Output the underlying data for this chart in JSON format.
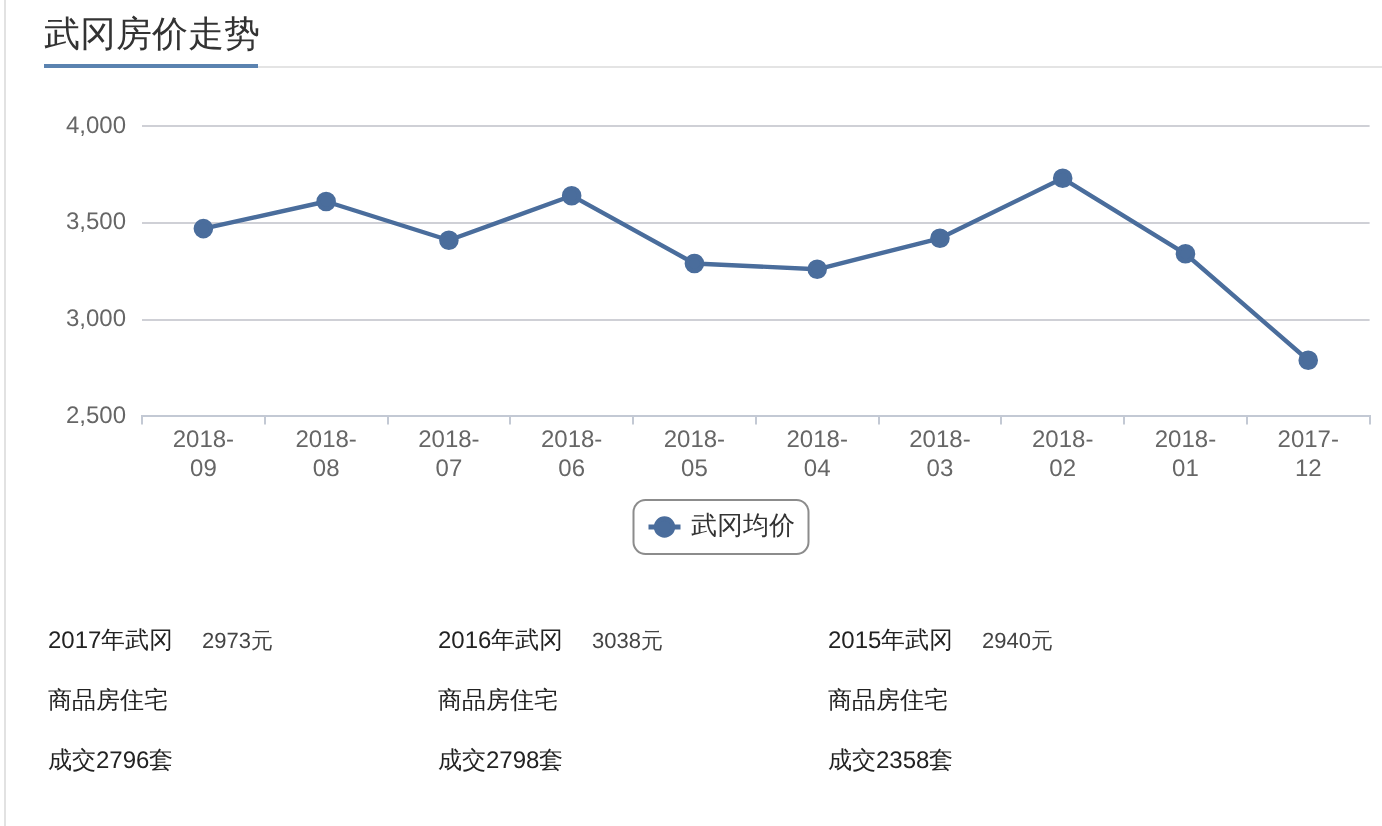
{
  "chart_data": {
    "type": "line",
    "title": "武冈房价走势",
    "categories": [
      "2018-09",
      "2018-08",
      "2018-07",
      "2018-06",
      "2018-05",
      "2018-04",
      "2018-03",
      "2018-02",
      "2018-01",
      "2017-12"
    ],
    "series": [
      {
        "name": "武冈均价",
        "color": "#4a6d9c",
        "values": [
          3470,
          3610,
          3410,
          3640,
          3290,
          3260,
          3420,
          3730,
          3340,
          2790
        ]
      }
    ],
    "ylim": [
      2500,
      4000
    ],
    "yticks": [
      {
        "value": 2500,
        "label": "2,500"
      },
      {
        "value": 3000,
        "label": "3,000"
      },
      {
        "value": 3500,
        "label": "3,500"
      },
      {
        "value": 4000,
        "label": "4,000"
      }
    ],
    "grid": "y",
    "legend": "bottom",
    "marker": "circle",
    "line_style": "solid",
    "annotations": [
      "2017年武冈",
      "2973元",
      "商品房住宅",
      "成交2796套",
      "2016年武冈",
      "3038元",
      "商品房住宅",
      "成交2798套",
      "2015年武冈",
      "2940元",
      "商品房住宅",
      "成交2358套"
    ]
  }
}
